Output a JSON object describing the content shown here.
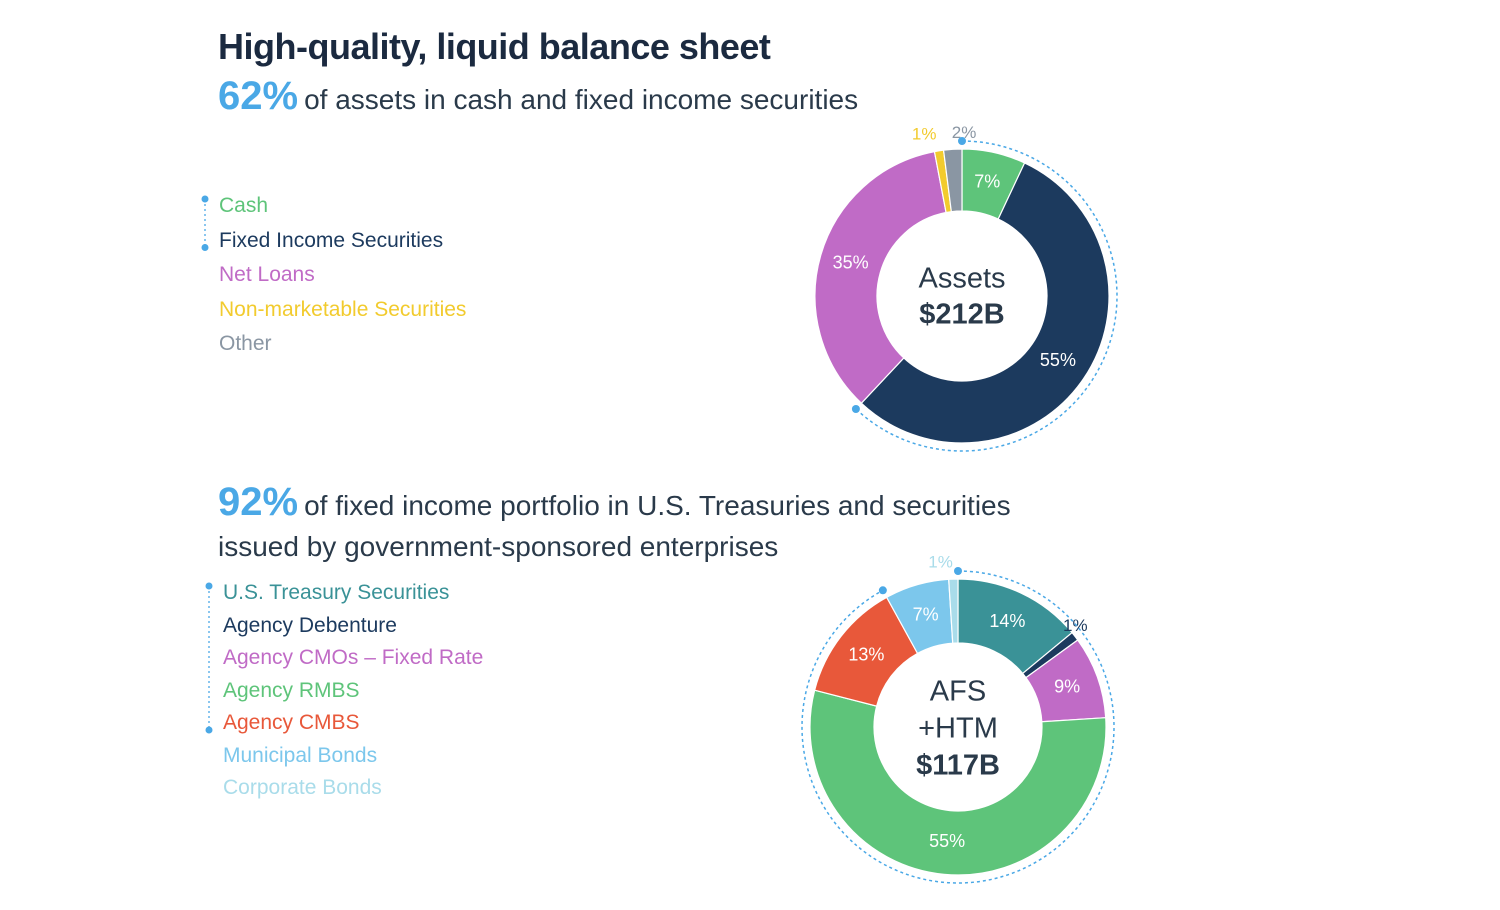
{
  "title": "High-quality, liquid balance sheet",
  "chart_data": [
    {
      "type": "donut",
      "highlight": "62%",
      "subtitle": "of assets in cash and fixed income securities",
      "center_lines": [
        "Assets",
        "$212B"
      ],
      "categories": [
        "Cash",
        "Fixed Income Securities",
        "Net Loans",
        "Non-marketable Securities",
        "Other"
      ],
      "values": [
        7,
        55,
        35,
        1,
        2
      ],
      "value_labels": [
        "7%",
        "55%",
        "35%",
        "1%",
        "2%"
      ],
      "colors": [
        "#5ec47a",
        "#1c3a5e",
        "#c06bc6",
        "#f2cb2e",
        "#8a96a3"
      ]
    },
    {
      "type": "donut",
      "highlight": "92%",
      "subtitle": "of fixed income portfolio in U.S. Treasuries and securities issued by government-sponsored enterprises",
      "center_lines": [
        "AFS",
        "+HTM",
        "$117B"
      ],
      "categories": [
        "U.S. Treasury Securities",
        "Agency Debenture",
        "Agency CMOs – Fixed Rate",
        "Agency RMBS",
        "Agency CMBS",
        "Municipal Bonds",
        "Corporate Bonds"
      ],
      "values": [
        14,
        1,
        9,
        55,
        13,
        7,
        1
      ],
      "value_labels": [
        "14%",
        "1%",
        "9%",
        "55%",
        "13%",
        "7%",
        "1%"
      ],
      "colors": [
        "#3a9297",
        "#1c3a5e",
        "#c06bc6",
        "#5ec47a",
        "#e8583a",
        "#7cc7ec",
        "#a9dcea"
      ]
    }
  ]
}
